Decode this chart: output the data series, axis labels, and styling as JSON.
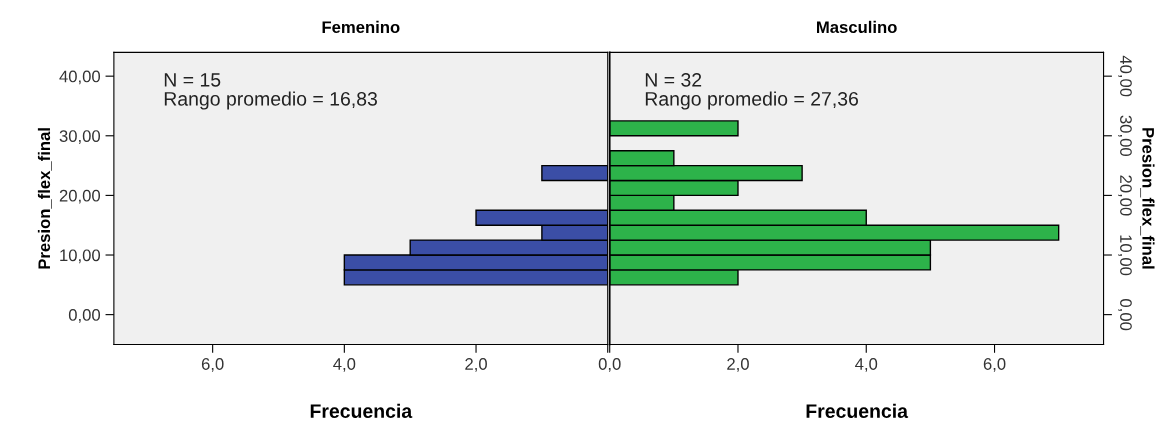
{
  "chart_data": [
    {
      "type": "histogram",
      "orientation": "horizontal",
      "title": "Femenino",
      "xlabel": "Frecuencia",
      "ylabel": "Presion_flex_final",
      "bins": [
        5,
        7.5,
        10,
        12.5,
        15,
        17.5,
        20,
        22.5,
        25
      ],
      "values": [
        4,
        4,
        3,
        1,
        2,
        null,
        null,
        1
      ],
      "color": "#3b4ea6",
      "xlim": [
        7.5,
        0
      ],
      "xticks": [
        {
          "value": 6,
          "label": "6,0"
        },
        {
          "value": 4,
          "label": "4,0"
        },
        {
          "value": 2,
          "label": "2,0"
        },
        {
          "value": 0,
          "label": null
        }
      ],
      "ylim": [
        -5,
        44
      ],
      "yticks": [
        {
          "value": 0,
          "label": "0,00"
        },
        {
          "value": 10,
          "label": "10,00"
        },
        {
          "value": 20,
          "label": "20,00"
        },
        {
          "value": 30,
          "label": "30,00"
        },
        {
          "value": 40,
          "label": "40,00"
        }
      ],
      "annotations": [
        "N = 15",
        "Rango promedio = 16,83"
      ]
    },
    {
      "type": "histogram",
      "orientation": "horizontal",
      "title": "Masculino",
      "xlabel": "Frecuencia",
      "ylabel": "Presion_flex_final",
      "bins": [
        5,
        7.5,
        10,
        12.5,
        15,
        17.5,
        20,
        22.5,
        25,
        27.5,
        30,
        32.5
      ],
      "values": [
        2,
        5,
        5,
        7,
        4,
        1,
        2,
        3,
        1,
        null,
        2
      ],
      "color": "#2db34a",
      "xlim": [
        0,
        7.7
      ],
      "xticks": [
        {
          "value": 0,
          "label": "0,0"
        },
        {
          "value": 2,
          "label": "2,0"
        },
        {
          "value": 4,
          "label": "4,0"
        },
        {
          "value": 6,
          "label": "6,0"
        }
      ],
      "ylim": [
        -5,
        44
      ],
      "yticks": [
        {
          "value": 0,
          "label": "0,00"
        },
        {
          "value": 10,
          "label": "10,00"
        },
        {
          "value": 20,
          "label": "20,00"
        },
        {
          "value": 30,
          "label": "30,00"
        },
        {
          "value": 40,
          "label": "40,00"
        }
      ],
      "annotations": [
        "N = 32",
        "Rango promedio = 27,36"
      ]
    }
  ]
}
